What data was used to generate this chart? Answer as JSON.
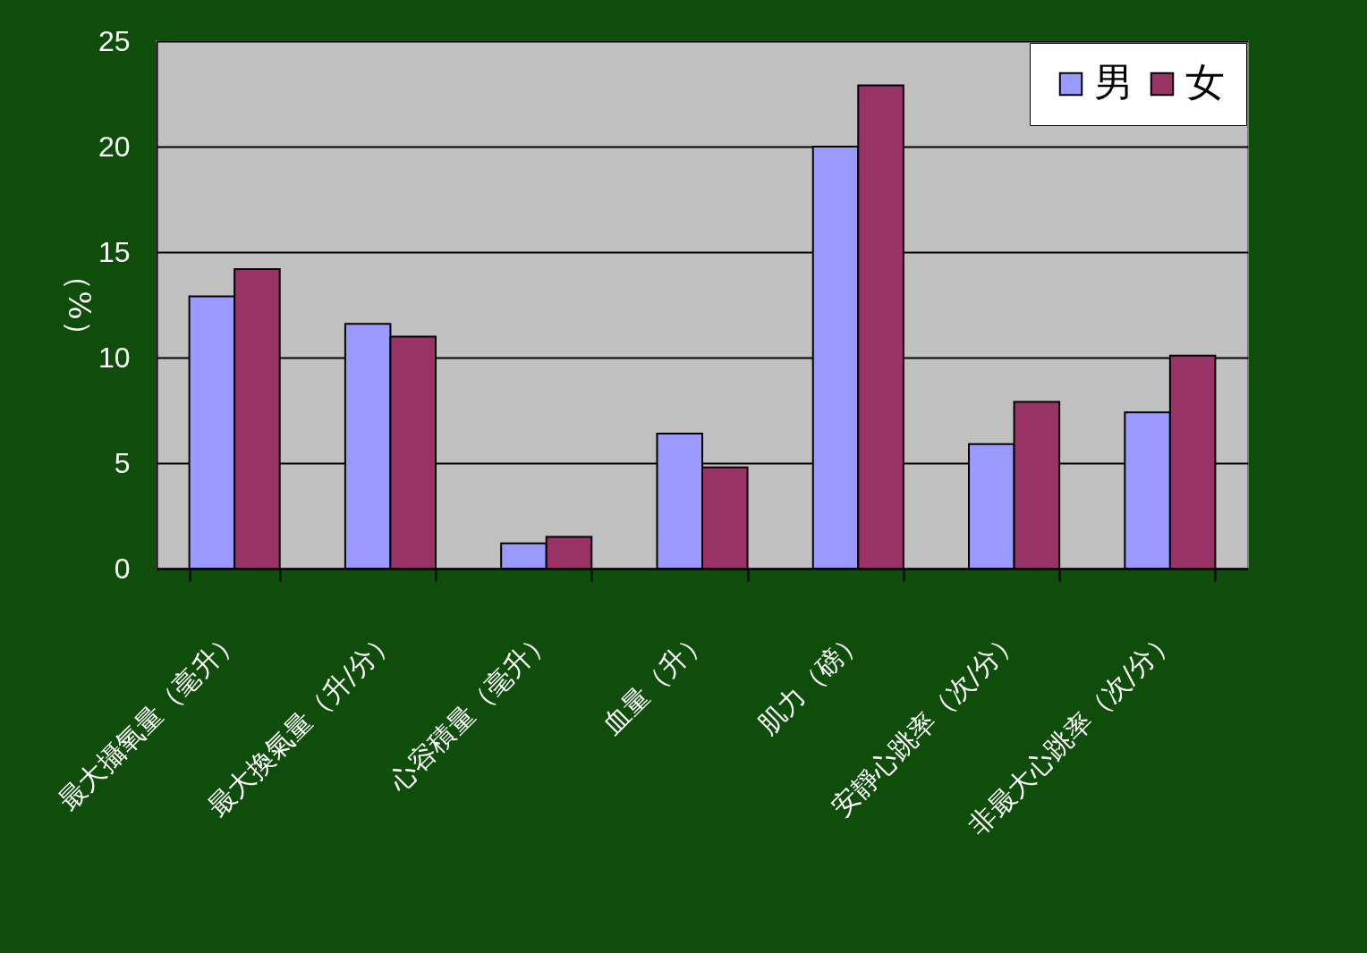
{
  "chart_data": {
    "type": "bar",
    "ylabel": "（%）",
    "categories": [
      "最大攝氧量（毫升）",
      "最大換氣量（升/分）",
      "心容積量（毫升）",
      "血量（升）",
      "肌力（磅）",
      "安靜心跳率（次/分）",
      "非最大心跳率（次/分）"
    ],
    "series": [
      {
        "name": "男",
        "color": "#9999ff",
        "values": [
          12.9,
          11.6,
          1.2,
          6.4,
          20.0,
          5.9,
          7.4
        ]
      },
      {
        "name": "女",
        "color": "#993366",
        "values": [
          14.2,
          11.0,
          1.5,
          4.8,
          22.9,
          7.9,
          10.1
        ]
      }
    ],
    "ylim": [
      0,
      25
    ],
    "yticks": [
      0,
      5,
      10,
      15,
      20,
      25
    ],
    "grid": "y",
    "legend": "top right"
  }
}
